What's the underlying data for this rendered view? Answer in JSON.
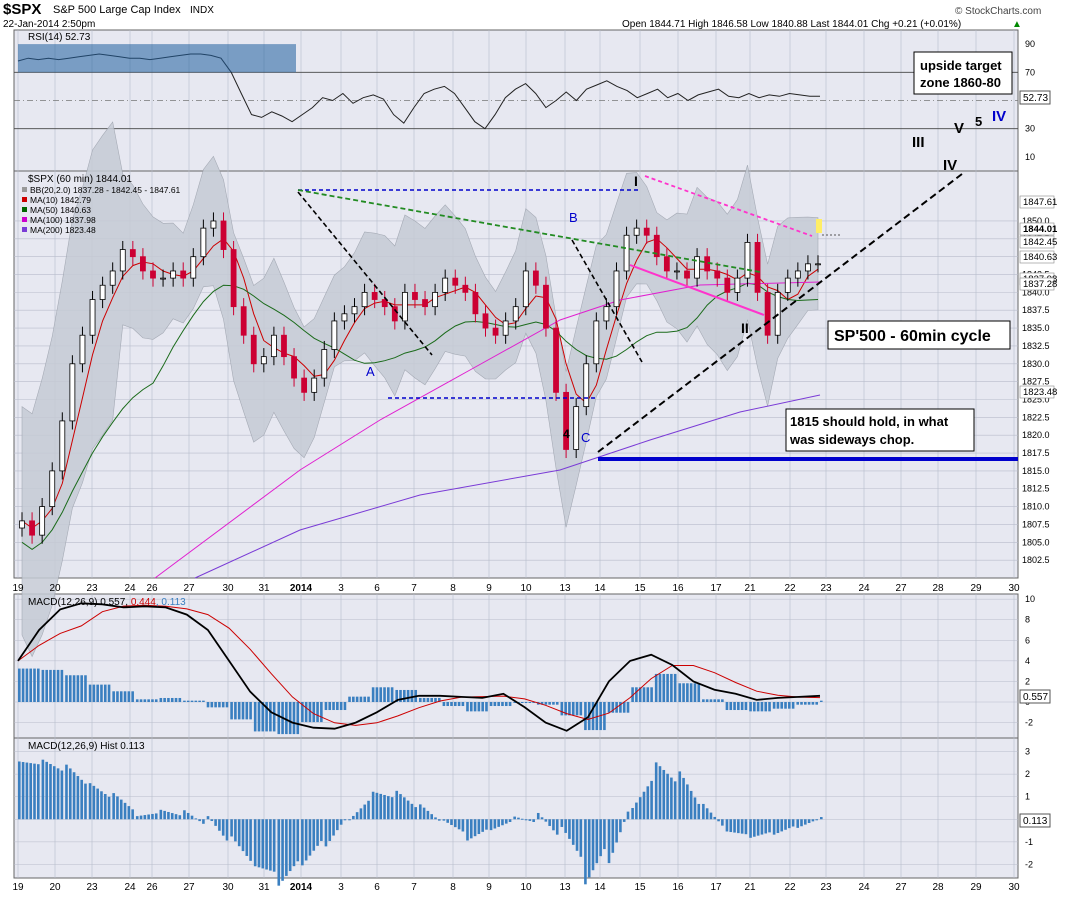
{
  "header": {
    "symbol": "$SPX",
    "name": "S&P 500 Large Cap Index",
    "exchange": "INDX",
    "datetime": "22-Jan-2014 2:50pm",
    "copyright": "© StockCharts.com",
    "quote": "Open 1844.71  High 1846.58  Low 1840.88  Last 1844.01  Chg +0.21 (+0.01%)",
    "quote_arrow": "▲"
  },
  "rsi_panel": {
    "label": "RSI(14) 52.73",
    "ticks": [
      "90",
      "70",
      "50",
      "30",
      "10"
    ],
    "value_label": "52.73"
  },
  "price_panel": {
    "label": "$SPX (60 min) 1844.01",
    "legend": [
      {
        "text": "BB(20,2.0) 1837.28 - 1842.45 - 1847.61",
        "color": "#999999"
      },
      {
        "text": "MA(10) 1842.79",
        "color": "#cc0000"
      },
      {
        "text": "MA(50) 1840.63",
        "color": "#006600"
      },
      {
        "text": "MA(100) 1837.98",
        "color": "#cc00cc"
      },
      {
        "text": "MA(200) 1823.48",
        "color": "#7a3bd6"
      }
    ],
    "right_value_labels": [
      "1847.61",
      "1844.01",
      "1842.45",
      "1840.63",
      "1837.98",
      "1837.28",
      "1823.48"
    ]
  },
  "macd_panel": {
    "label_prefix": "MACD(12,26,9) 0.557, ",
    "signal_val": "0.444",
    "hist_val": ", 0.113",
    "ticks": [
      "10",
      "8",
      "6",
      "4",
      "2",
      "0",
      "-2"
    ],
    "value_label": "0.557"
  },
  "hist_panel": {
    "label": "MACD(12,26,9) Hist 0.113",
    "ticks": [
      "3",
      "2",
      "1",
      "0",
      "-1",
      "-2"
    ],
    "value_label": "0.113"
  },
  "annotations": {
    "upside_target": [
      "upside target",
      "zone 1860-80"
    ],
    "cycle": "SP'500 - 60min cycle",
    "hold_note": [
      "1815 should hold, in what",
      "was sideways chop."
    ],
    "wave_labels": {
      "A": "A",
      "B": "B",
      "C": "C",
      "four": "4",
      "I": "I",
      "II": "II",
      "III": "III",
      "IV_black": "IV",
      "V": "V",
      "five": "5",
      "IV_blue": "IV"
    }
  },
  "colors": {
    "up": "#000000",
    "down": "#cc0033",
    "bb_fill": "#cfd4dc",
    "blue_line": "#0000cc",
    "green_dash": "#228b22",
    "magenta": "#ff33cc"
  },
  "chart_data": {
    "type": "candlestick",
    "title": "$SPX S&P 500 Large Cap Index INDX",
    "timeframe": "60 min",
    "x_tick_labels": [
      "19",
      "20",
      "23",
      "24",
      "26",
      "27",
      "30",
      "31",
      "2014",
      "3",
      "6",
      "7",
      "8",
      "9",
      "10",
      "13",
      "14",
      "15",
      "16",
      "17",
      "21",
      "22",
      "23",
      "24",
      "27",
      "28",
      "29",
      "30"
    ],
    "y_ticks": [
      1802.5,
      1805,
      1807.5,
      1810,
      1812.5,
      1815,
      1817.5,
      1820,
      1822.5,
      1825,
      1827.5,
      1830,
      1832.5,
      1835,
      1837.5,
      1840,
      1842.5,
      1845,
      1847.5,
      1850
    ],
    "ylim": [
      1800,
      1857
    ],
    "price_path": [
      1808,
      1806,
      1810,
      1815,
      1822,
      1830,
      1834,
      1839,
      1841,
      1843,
      1846,
      1845,
      1843,
      1842,
      1842,
      1843,
      1842,
      1845,
      1849,
      1850,
      1846,
      1838,
      1834,
      1830,
      1831,
      1834,
      1831,
      1828,
      1826,
      1828,
      1832,
      1836,
      1837,
      1838,
      1840,
      1839,
      1838,
      1836,
      1840,
      1839,
      1838,
      1840,
      1842,
      1841,
      1840,
      1837,
      1835,
      1834,
      1836,
      1838,
      1843,
      1841,
      1835,
      1826,
      1818,
      1824,
      1830,
      1836,
      1838,
      1843,
      1848,
      1849,
      1848,
      1845,
      1843,
      1843,
      1842,
      1845,
      1843,
      1842,
      1840,
      1842,
      1847,
      1840,
      1834,
      1840,
      1842,
      1843,
      1844,
      1844
    ],
    "ohlc_last": {
      "open": 1844.71,
      "high": 1846.58,
      "low": 1840.88,
      "close": 1844.01,
      "change": 0.21
    },
    "indicators": {
      "BB(20,2.0)": [
        1837.28,
        1842.45,
        1847.61
      ],
      "MA(10)": 1842.79,
      "MA(50)": 1840.63,
      "MA(100)": 1837.98,
      "MA(200)": 1823.48
    },
    "rsi": {
      "period": 14,
      "last": 52.73,
      "ylim": [
        0,
        100
      ]
    },
    "macd": {
      "params": [
        12,
        26,
        9
      ],
      "macd": 0.557,
      "signal": 0.444,
      "hist": 0.113,
      "macd_path": [
        4,
        7,
        9,
        9.6,
        9.5,
        9.2,
        9.3,
        9.2,
        8.5,
        7,
        4,
        1,
        -1,
        -2,
        -2.5,
        -2.6,
        -2,
        -1,
        0.2,
        0.6,
        0.6,
        0.5,
        0.4,
        0.8,
        -0.5,
        -2,
        -2.8,
        -1.5,
        2,
        4,
        4.6,
        3.6,
        2,
        1.2,
        0.8,
        0.2,
        0.4,
        0.5,
        0.6
      ],
      "hist_path": [
        2.5,
        2.4,
        2,
        1.3,
        0.8,
        0.2,
        0.3,
        0.1,
        -0.4,
        -1.3,
        -2.2,
        -2.4,
        -1.5,
        -0.6,
        0.4,
        1.1,
        0.9,
        0.3,
        -0.3,
        -0.7,
        -0.3,
        0,
        -0.2,
        -1,
        -2.1,
        -0.8,
        1.1,
        2.1,
        1.4,
        0.2,
        -0.6,
        -0.7,
        -0.5,
        -0.2,
        0.1
      ]
    }
  }
}
